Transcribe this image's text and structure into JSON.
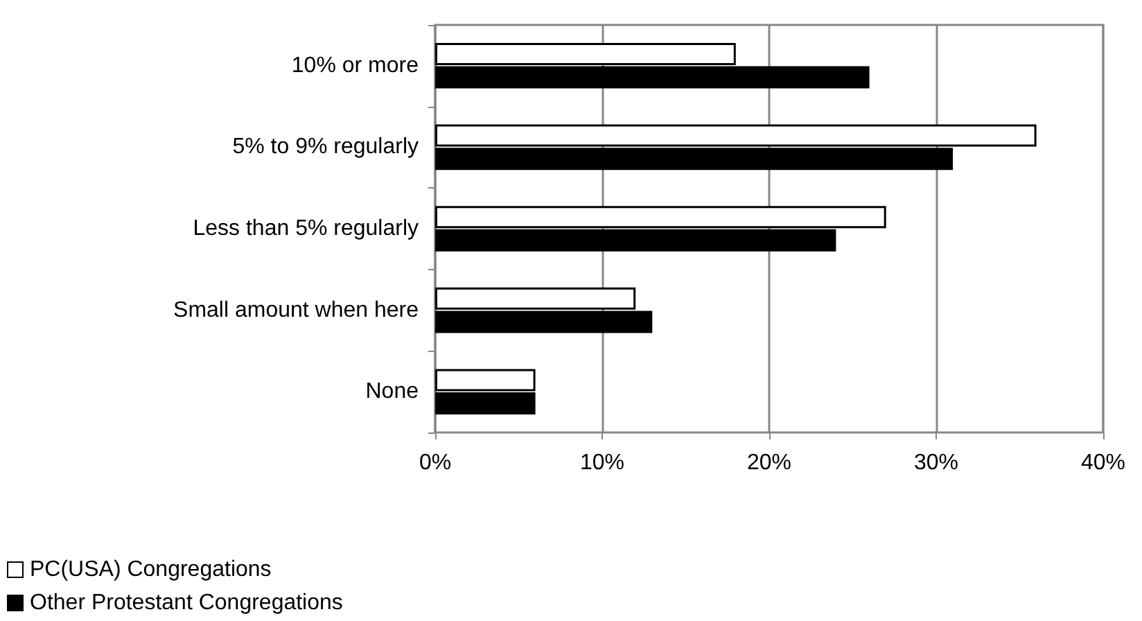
{
  "chart_data": {
    "type": "bar",
    "orientation": "horizontal",
    "categories": [
      "10% or more",
      "5% to 9% regularly",
      "Less than 5% regularly",
      "Small amount when here",
      "None"
    ],
    "series": [
      {
        "name": "PC(USA) Congregations",
        "color": "#ffffff",
        "values": [
          18,
          36,
          27,
          12,
          6
        ]
      },
      {
        "name": "Other Protestant Congregations",
        "color": "#000000",
        "values": [
          26,
          31,
          24,
          13,
          6
        ]
      }
    ],
    "xlim": [
      0,
      40
    ],
    "xticks": [
      {
        "value": 0,
        "label": "0%"
      },
      {
        "value": 10,
        "label": "10%"
      },
      {
        "value": 20,
        "label": "20%"
      },
      {
        "value": 30,
        "label": "30%"
      },
      {
        "value": 40,
        "label": "40%"
      }
    ],
    "grid": "x",
    "legend": "bottom left"
  }
}
